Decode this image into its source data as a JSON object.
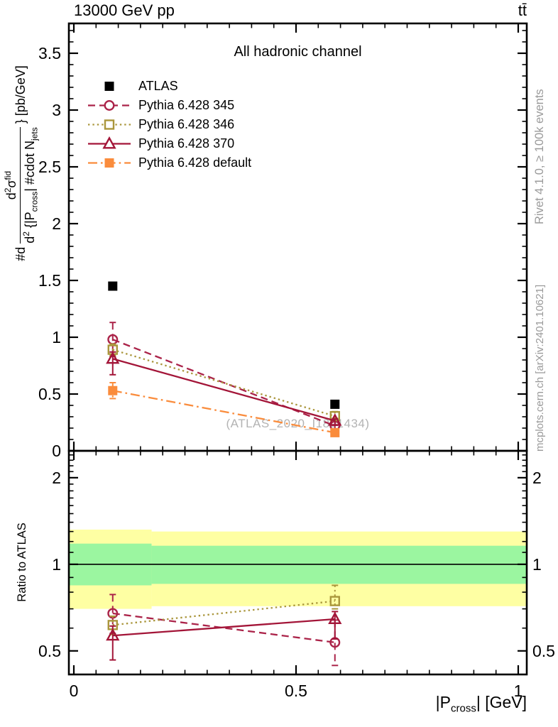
{
  "header": {
    "left": "13000 GeV pp",
    "right": "tt̄"
  },
  "plot": {
    "title": "All hadronic channel",
    "watermark": "(ATLAS_2020_I1801434)"
  },
  "credits": {
    "top": "Rivet 4.1.0, ≥ 100k events",
    "bottom": "mcplots.cern.ch [arXiv:2401.10621]"
  },
  "axes": {
    "main_y_label": {
      "prefix": "#d",
      "num_base": "d",
      "num_sup1": "2",
      "num_sigma": "σ",
      "num_sup2": "fid",
      "den_1": "d",
      "den_sup": "2",
      "den_2": " {|P",
      "den_sub1": "cross",
      "den_3": "| #cdot N",
      "den_sub2": "jets",
      "suffix": "} [pb/GeV]"
    },
    "ratio_y_label": "Ratio to ATLAS",
    "x_label": {
      "p1": "|P",
      "sub": "cross",
      "p2": "| [GeV]"
    }
  },
  "chart_data": [
    {
      "id": "main",
      "type": "line",
      "title": "All hadronic channel",
      "xlabel": "|P_cross| [GeV]",
      "ylabel": "#d d^2#sigma^fid / d^2{|P_cross| #cdot N_jets} [pb/GeV]",
      "xlim": [
        -0.0112,
        1.0192
      ],
      "ylim": [
        0,
        3.7625
      ],
      "grid": false,
      "legend_position": "top-left",
      "xticks": {
        "major": [
          0,
          0.5,
          1
        ],
        "labels": [
          "0",
          "0.5",
          "1"
        ],
        "minor_step": 0.05
      },
      "yticks": {
        "values": [
          0,
          0.5,
          1,
          1.5,
          2,
          2.5,
          3,
          3.5
        ],
        "labels": [
          "0",
          "0.5",
          "1",
          "1.5",
          "2",
          "2.5",
          "3",
          "3.5"
        ],
        "minor_step": 0.1
      },
      "x": [
        0.0875,
        0.5875
      ],
      "series": [
        {
          "name": "ATLAS",
          "color": "#000000",
          "marker": "square_filled",
          "line": "none",
          "y": [
            1.45,
            0.41
          ],
          "yerr_lo": [
            0,
            0
          ],
          "yerr_hi": [
            0,
            0
          ]
        },
        {
          "name": "Pythia 6.428 345",
          "color": "#ab2349",
          "marker": "circle_open",
          "line": "dashed",
          "y": [
            0.98,
            0.22
          ],
          "yerr_lo": [
            0.15,
            0.04
          ],
          "yerr_hi": [
            0.15,
            0.04
          ]
        },
        {
          "name": "Pythia 6.428 346",
          "color": "#aa963c",
          "marker": "square_open",
          "line": "dotted",
          "y": [
            0.89,
            0.305
          ],
          "yerr_lo": [
            0.05,
            0.02
          ],
          "yerr_hi": [
            0.05,
            0.04
          ]
        },
        {
          "name": "Pythia 6.428 370",
          "color": "#a31538",
          "marker": "triangle_open",
          "line": "solid",
          "y": [
            0.81,
            0.265
          ],
          "yerr_lo": [
            0.14,
            0.04
          ],
          "yerr_hi": [
            0.06,
            0.015
          ]
        },
        {
          "name": "Pythia 6.428 default",
          "color": "#fa8c3c",
          "marker": "square_filled",
          "line": "dashdot",
          "y": [
            0.53,
            0.16
          ],
          "yerr_lo": [
            0.07,
            0.02
          ],
          "yerr_hi": [
            0.07,
            0.02
          ]
        }
      ]
    },
    {
      "id": "ratio",
      "type": "line",
      "ylabel": "Ratio to ATLAS",
      "yscale": "log",
      "xlim": [
        -0.0112,
        1.0192
      ],
      "ylim": [
        0.414,
        2.48
      ],
      "reference_line": 1,
      "xticks": {
        "major": [
          0,
          0.5,
          1
        ],
        "labels": [
          "0",
          "0.5",
          "1"
        ],
        "minor_step": 0.05
      },
      "yticks": {
        "values": [
          0.5,
          1,
          2
        ],
        "labels": [
          "0.5",
          "1",
          "2"
        ],
        "minor": [
          0.6,
          0.7,
          0.8,
          0.9,
          1.1,
          1.2,
          1.3,
          1.4,
          1.5,
          1.6,
          1.7,
          1.8,
          1.9,
          2.1,
          2.2,
          2.3,
          2.4
        ]
      },
      "bands": [
        {
          "x0": -0.0112,
          "x1": 0.175,
          "outer": [
            0.7,
            1.32
          ],
          "inner": [
            0.845,
            1.18
          ],
          "outer_color": "#feffa3",
          "inner_color": "#9bf6a0"
        },
        {
          "x0": 0.175,
          "x1": 1.0192,
          "outer": [
            0.715,
            1.3
          ],
          "inner": [
            0.855,
            1.16
          ],
          "outer_color": "#feffa3",
          "inner_color": "#9bf6a0"
        }
      ],
      "x": [
        0.0875,
        0.5875
      ],
      "series": [
        {
          "name": "Pythia 6.428 345",
          "color": "#ab2349",
          "marker": "circle_open",
          "line": "dashed",
          "y": [
            0.675,
            0.535
          ],
          "yerr_lo": [
            0.1,
            0.09
          ],
          "yerr_hi": [
            0.11,
            0.105
          ]
        },
        {
          "name": "Pythia 6.428 346",
          "color": "#aa963c",
          "marker": "square_open",
          "line": "dotted",
          "y": [
            0.615,
            0.745
          ],
          "yerr_lo": [
            0.045,
            0.045
          ],
          "yerr_hi": [
            0.045,
            0.1
          ]
        },
        {
          "name": "Pythia 6.428 370",
          "color": "#a31538",
          "marker": "triangle_open",
          "line": "solid",
          "y": [
            0.565,
            0.645
          ],
          "yerr_lo": [
            0.1,
            0.095
          ],
          "yerr_hi": [
            0.045,
            0.04
          ]
        }
      ]
    }
  ]
}
